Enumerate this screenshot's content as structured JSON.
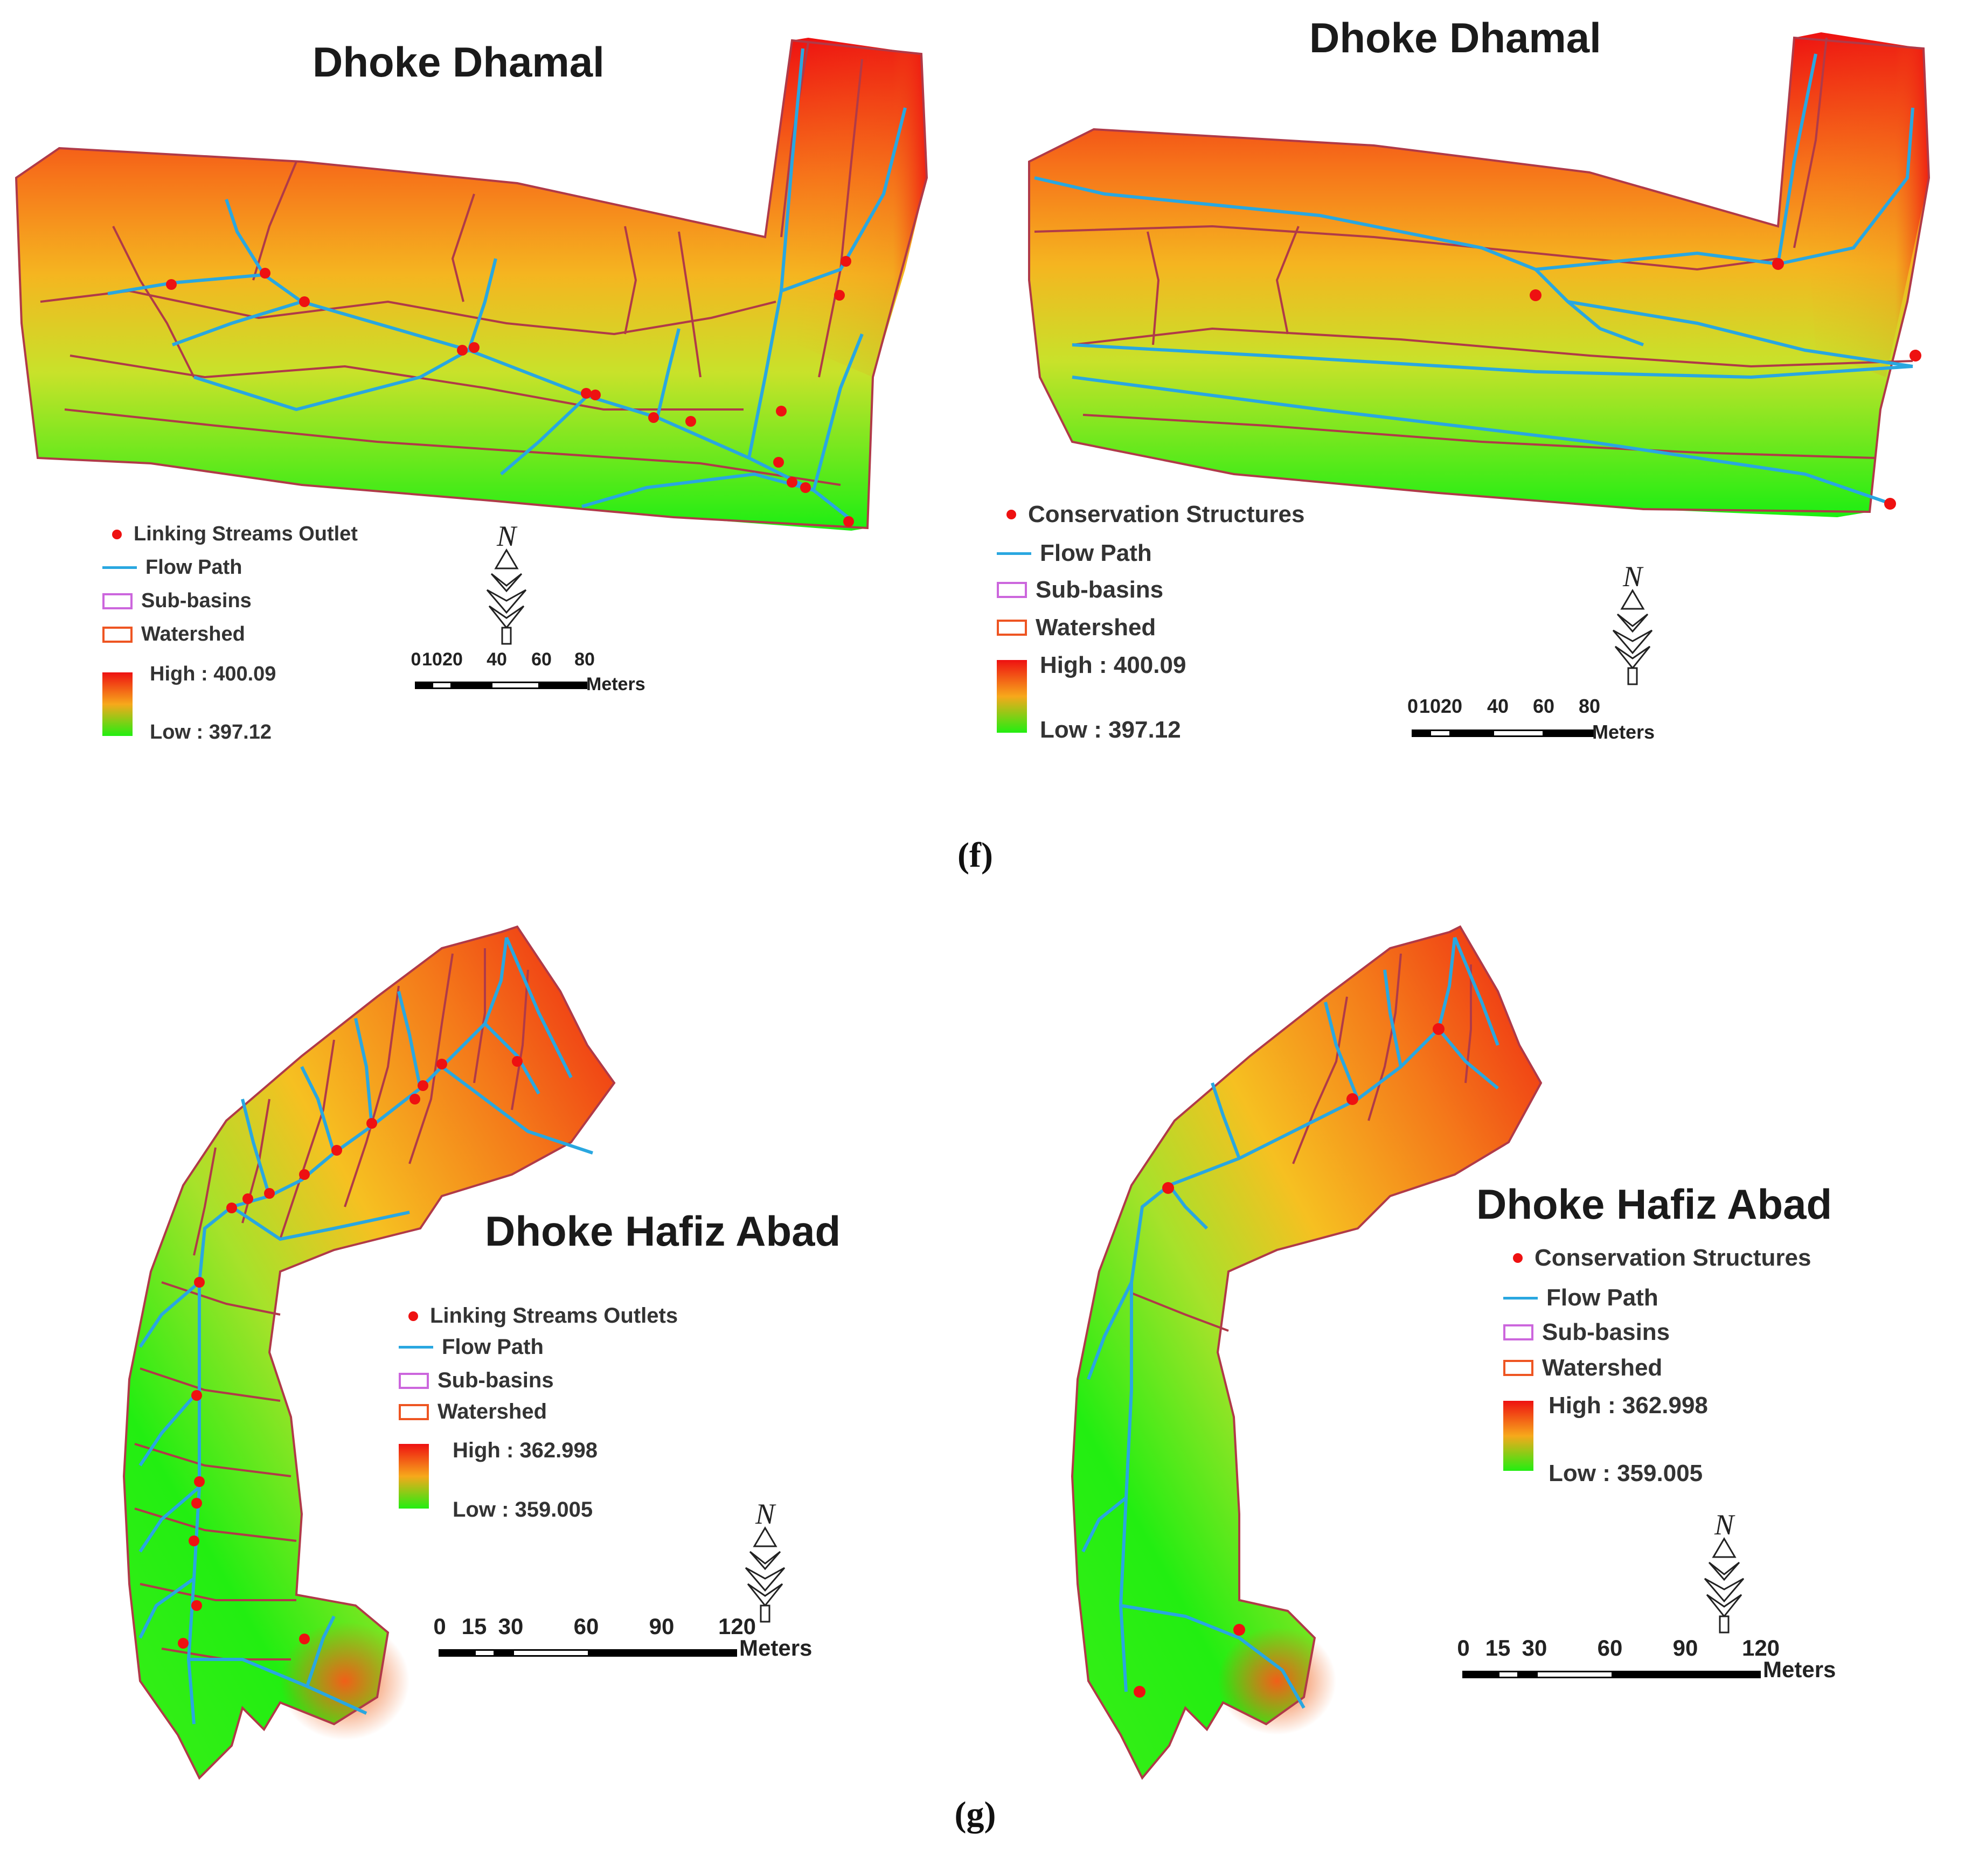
{
  "figure": {
    "captions": {
      "f": "(f)",
      "g": "(g)"
    },
    "panels": [
      {
        "id": "f-left",
        "title": "Dhoke Dhamal",
        "legend": {
          "points_label": "Linking Streams Outlet",
          "flow_label": "Flow Path",
          "subbasins_label": "Sub-basins",
          "watershed_label": "Watershed",
          "high_label": "High : 400.09",
          "low_label": "Low : 397.12"
        },
        "scale": {
          "ticks": [
            "0",
            "10",
            "20",
            "40",
            "60",
            "80"
          ],
          "unit": "Meters"
        },
        "north": "N"
      },
      {
        "id": "f-right",
        "title": "Dhoke Dhamal",
        "legend": {
          "points_label": "Conservation Structures",
          "flow_label": "Flow Path",
          "subbasins_label": "Sub-basins",
          "watershed_label": "Watershed",
          "high_label": "High : 400.09",
          "low_label": "Low : 397.12"
        },
        "scale": {
          "ticks": [
            "0",
            "10",
            "20",
            "40",
            "60",
            "80"
          ],
          "unit": "Meters"
        },
        "north": "N"
      },
      {
        "id": "g-left",
        "title": "Dhoke Hafiz Abad",
        "legend": {
          "points_label": "Linking Streams Outlets",
          "flow_label": "Flow Path",
          "subbasins_label": "Sub-basins",
          "watershed_label": "Watershed",
          "high_label": "High : 362.998",
          "low_label": "Low : 359.005"
        },
        "scale": {
          "ticks": [
            "0",
            "15",
            "30",
            "60",
            "90",
            "120"
          ],
          "unit": "Meters"
        },
        "north": "N"
      },
      {
        "id": "g-right",
        "title": "Dhoke Hafiz Abad",
        "legend": {
          "points_label": "Conservation Structures",
          "flow_label": "Flow Path",
          "subbasins_label": "Sub-basins",
          "watershed_label": "Watershed",
          "high_label": "High : 362.998",
          "low_label": "Low : 359.005"
        },
        "scale": {
          "ticks": [
            "0",
            "15",
            "30",
            "60",
            "90",
            "120"
          ],
          "unit": "Meters"
        },
        "north": "N"
      }
    ],
    "colors": {
      "elevation_high": "#ee1111",
      "elevation_mid": "#f7a81b",
      "elevation_low": "#22ee11",
      "flow_path": "#29a7e0",
      "sub_basins": "#cc66dd",
      "watershed": "#ee5522",
      "boundary_lines": "#b03a48",
      "points": "#ee1111"
    }
  }
}
